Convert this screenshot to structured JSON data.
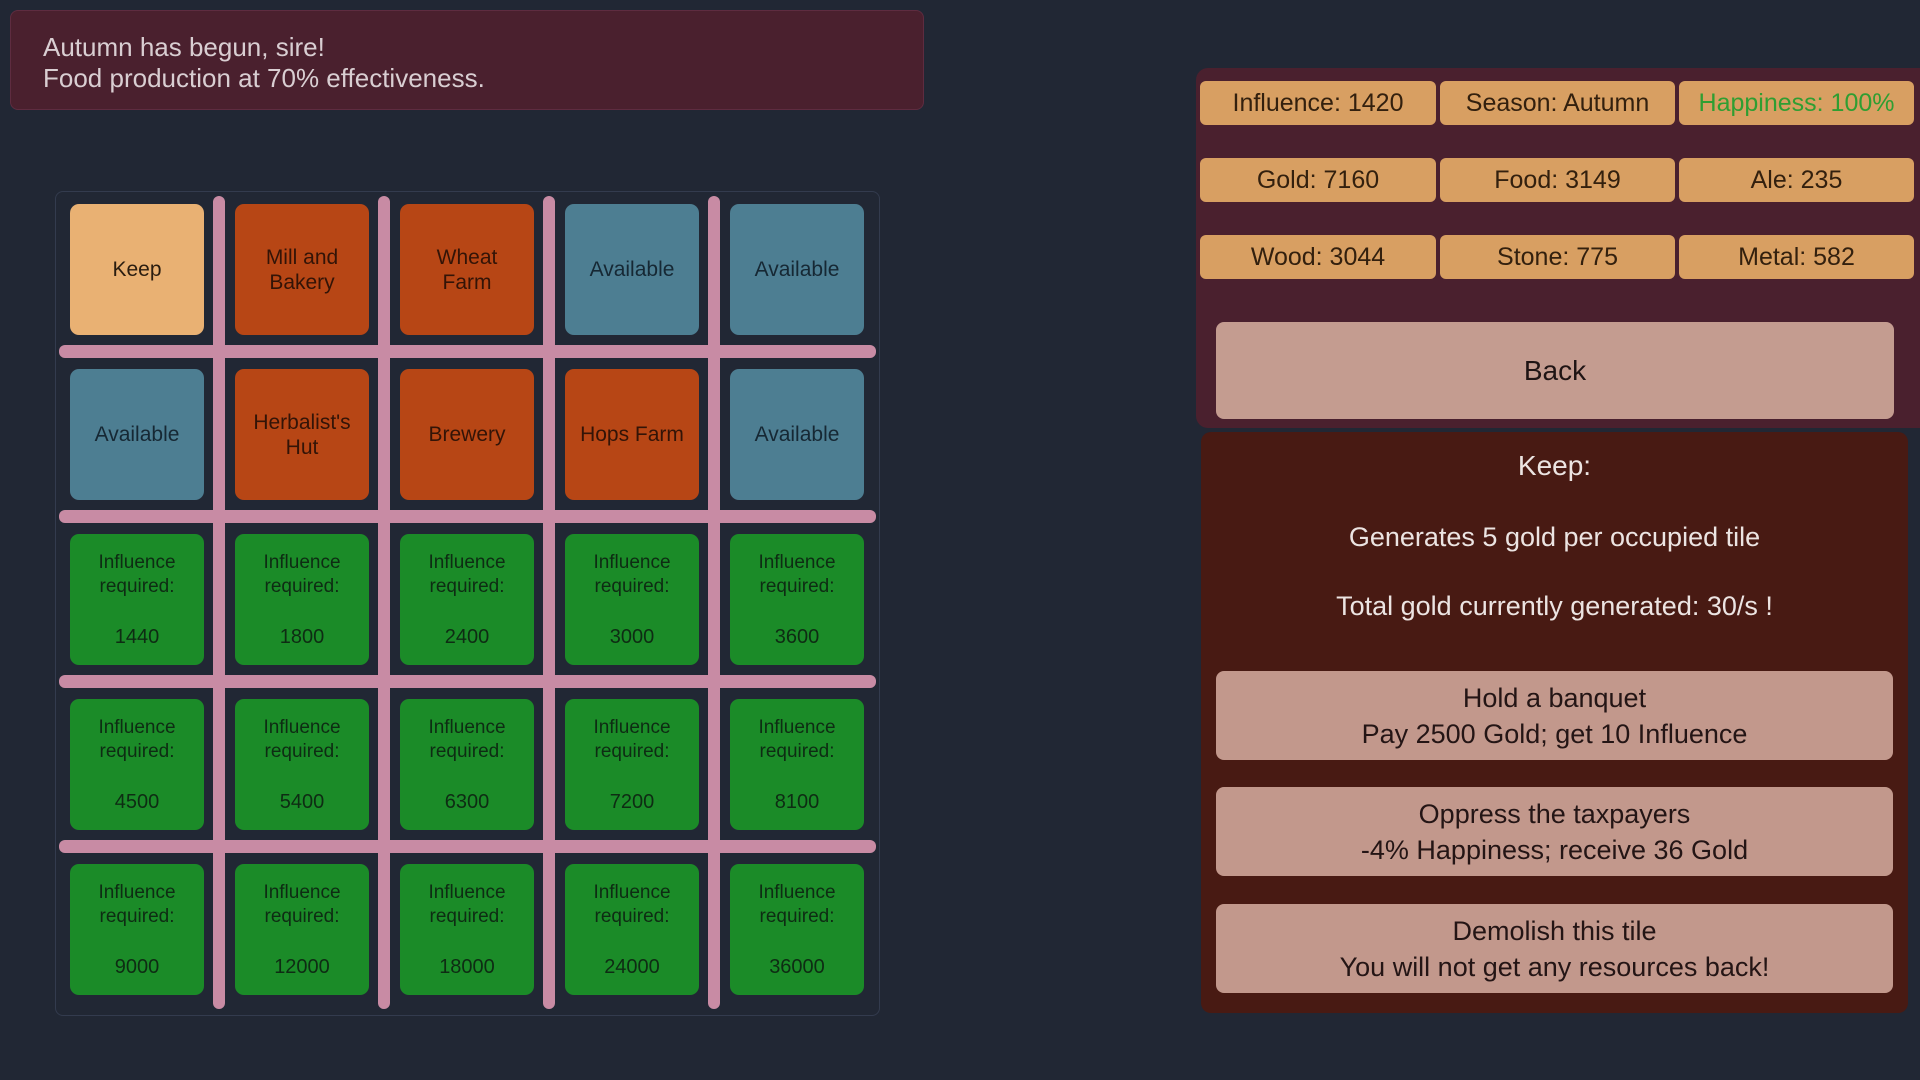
{
  "notification": {
    "line1": "Autumn has begun, sire!",
    "line2": "Food production at 70% effectiveness."
  },
  "resources": {
    "items": [
      {
        "id": "influence",
        "label": "Influence: 1420"
      },
      {
        "id": "season",
        "label": "Season: Autumn"
      },
      {
        "id": "happiness",
        "label": "Happiness: 100%"
      },
      {
        "id": "gold",
        "label": "Gold: 7160"
      },
      {
        "id": "food",
        "label": "Food: 3149"
      },
      {
        "id": "ale",
        "label": "Ale: 235"
      },
      {
        "id": "wood",
        "label": "Wood: 3044"
      },
      {
        "id": "stone",
        "label": "Stone: 775"
      },
      {
        "id": "metal",
        "label": "Metal: 582"
      }
    ]
  },
  "back_button": {
    "label": "Back"
  },
  "tile_info": {
    "title": "Keep:",
    "lines": [
      "Generates 5 gold per occupied tile",
      "Total gold currently generated: 30/s !"
    ],
    "actions": [
      {
        "title": "Hold a banquet",
        "subtitle": "Pay 2500 Gold; get 10 Influence"
      },
      {
        "title": "Oppress the taxpayers",
        "subtitle": "-4% Happiness; receive 36 Gold"
      },
      {
        "title": "Demolish this tile",
        "subtitle": "You will not get any resources back!"
      }
    ]
  },
  "grid": {
    "tiles": [
      {
        "type": "keep",
        "label": "Keep"
      },
      {
        "type": "building",
        "label": "Mill and Bakery"
      },
      {
        "type": "building",
        "label": "Wheat Farm"
      },
      {
        "type": "available",
        "label": "Available"
      },
      {
        "type": "available",
        "label": "Available"
      },
      {
        "type": "available",
        "label": "Available"
      },
      {
        "type": "building",
        "label": "Herbalist's Hut"
      },
      {
        "type": "building",
        "label": "Brewery"
      },
      {
        "type": "building",
        "label": "Hops Farm"
      },
      {
        "type": "available",
        "label": "Available"
      },
      {
        "type": "locked",
        "label": "Influence required:",
        "value": "1440"
      },
      {
        "type": "locked",
        "label": "Influence required:",
        "value": "1800"
      },
      {
        "type": "locked",
        "label": "Influence required:",
        "value": "2400"
      },
      {
        "type": "locked",
        "label": "Influence required:",
        "value": "3000"
      },
      {
        "type": "locked",
        "label": "Influence required:",
        "value": "3600"
      },
      {
        "type": "locked",
        "label": "Influence required:",
        "value": "4500"
      },
      {
        "type": "locked",
        "label": "Influence required:",
        "value": "5400"
      },
      {
        "type": "locked",
        "label": "Influence required:",
        "value": "6300"
      },
      {
        "type": "locked",
        "label": "Influence required:",
        "value": "7200"
      },
      {
        "type": "locked",
        "label": "Influence required:",
        "value": "8100"
      },
      {
        "type": "locked",
        "label": "Influence required:",
        "value": "9000"
      },
      {
        "type": "locked",
        "label": "Influence required:",
        "value": "12000"
      },
      {
        "type": "locked",
        "label": "Influence required:",
        "value": "18000"
      },
      {
        "type": "locked",
        "label": "Influence required:",
        "value": "24000"
      },
      {
        "type": "locked",
        "label": "Influence required:",
        "value": "36000"
      }
    ]
  },
  "colors": {
    "background": "#212734",
    "panel_maroon": "#4a202e",
    "panel_brown": "#481a13",
    "resource_button": "#d89f62",
    "action_button": "#c2988c",
    "happiness_text": "#2f9e32",
    "tile_keep": "#e9b173",
    "tile_building": "#b74615",
    "tile_available": "#4d7e92",
    "tile_locked": "#1b8b28",
    "grid_divider": "#c88ba4"
  }
}
